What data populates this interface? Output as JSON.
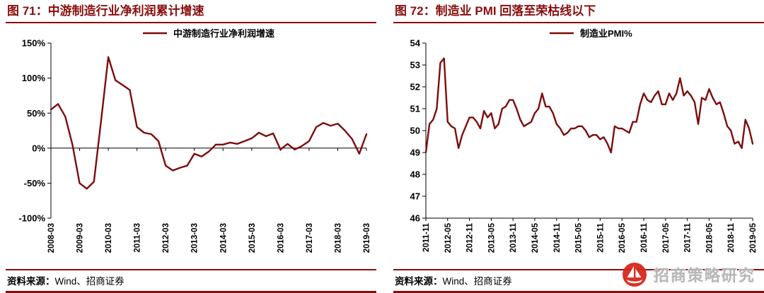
{
  "page": {
    "accent_color": "#8a0e0e",
    "background": "#ffffff"
  },
  "panels": [
    {
      "title": "图 71：中游制造行业净利润累计增速",
      "source_label": "资料来源：",
      "source_value": "Wind、招商证券"
    },
    {
      "title": "图 72：制造业 PMI 回落至荣枯线以下",
      "source_label": "资料来源：",
      "source_value": "Wind、招商证券"
    }
  ],
  "watermark": {
    "text": "招商策略研究",
    "icon": "sailboat-logo"
  },
  "chart_data": [
    {
      "type": "line",
      "title": "中游制造行业净利润累计增速",
      "legend": [
        "中游制造行业净利润增速"
      ],
      "legend_position": "top-center",
      "grid": false,
      "line_color": "#7d0c0c",
      "ylim": [
        -100,
        150
      ],
      "yticks": [
        -100,
        -50,
        0,
        50,
        100,
        150
      ],
      "ytick_suffix": "%",
      "x_axis_at": 0,
      "x_unit": "quarter",
      "x_range": [
        "2008-03",
        "2019-03"
      ],
      "xtick_labels": [
        "2008-03",
        "2009-03",
        "2010-03",
        "2011-03",
        "2012-03",
        "2013-03",
        "2014-03",
        "2015-03",
        "2016-03",
        "2017-03",
        "2018-03",
        "2019-03"
      ],
      "xtick_every": 4,
      "series": [
        {
          "name": "中游制造行业净利润增速",
          "values": [
            55,
            63,
            45,
            5,
            -50,
            -58,
            -48,
            40,
            130,
            97,
            90,
            83,
            30,
            22,
            20,
            10,
            -25,
            -32,
            -28,
            -25,
            -8,
            -12,
            -5,
            5,
            5,
            8,
            6,
            10,
            14,
            22,
            17,
            21,
            -2,
            6,
            -2,
            3,
            10,
            30,
            36,
            32,
            35,
            25,
            13,
            -8,
            20
          ]
        }
      ]
    },
    {
      "type": "line",
      "title": "制造业PMI",
      "legend": [
        "制造业PMI%"
      ],
      "legend_position": "top-center",
      "grid": false,
      "line_color": "#7d0c0c",
      "ylim": [
        46,
        54
      ],
      "yticks": [
        46,
        47,
        48,
        49,
        50,
        51,
        52,
        53,
        54
      ],
      "ytick_suffix": "",
      "x_unit": "month",
      "x_range": [
        "2011-11",
        "2019-05"
      ],
      "xtick_labels": [
        "2011-11",
        "2012-05",
        "2012-11",
        "2013-05",
        "2013-11",
        "2014-05",
        "2014-11",
        "2015-05",
        "2015-11",
        "2016-05",
        "2016-11",
        "2017-05",
        "2017-11",
        "2018-05",
        "2018-11",
        "2019-05"
      ],
      "xtick_every": 6,
      "series": [
        {
          "name": "制造业PMI%",
          "values": [
            49.0,
            50.3,
            50.5,
            51.0,
            53.1,
            53.3,
            50.4,
            50.2,
            50.1,
            49.2,
            49.8,
            50.2,
            50.6,
            50.6,
            50.4,
            50.1,
            50.9,
            50.6,
            50.8,
            50.1,
            50.3,
            51.0,
            51.1,
            51.4,
            51.4,
            51.0,
            50.5,
            50.2,
            50.3,
            50.4,
            50.8,
            51.0,
            51.7,
            51.1,
            51.1,
            50.8,
            50.3,
            50.1,
            49.8,
            49.9,
            50.1,
            50.1,
            50.2,
            50.2,
            50.0,
            49.7,
            49.8,
            49.8,
            49.6,
            49.7,
            49.4,
            49.0,
            50.2,
            50.1,
            50.1,
            50.0,
            49.9,
            50.4,
            50.4,
            51.2,
            51.7,
            51.4,
            51.3,
            51.6,
            51.8,
            51.2,
            51.2,
            51.7,
            51.4,
            51.7,
            52.4,
            51.6,
            51.8,
            51.6,
            51.3,
            50.3,
            51.5,
            51.4,
            51.9,
            51.5,
            51.2,
            51.3,
            50.8,
            50.2,
            50.0,
            49.4,
            49.5,
            49.2,
            50.5,
            50.1,
            49.4
          ]
        }
      ]
    }
  ]
}
